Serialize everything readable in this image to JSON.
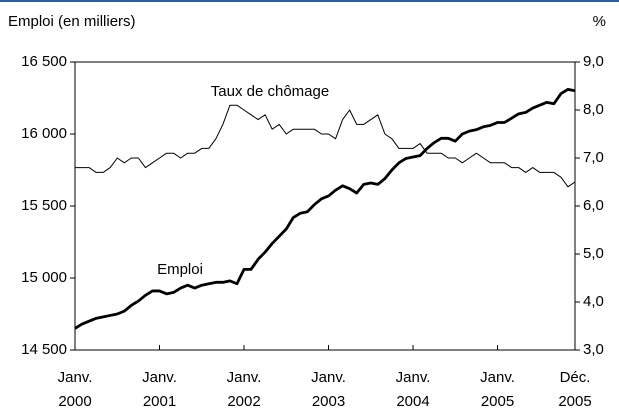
{
  "chart_data": {
    "type": "line",
    "y_label": "Emploi (en milliers)",
    "y2_label": "%",
    "annotations": [
      "Taux de chômage",
      "Emploi"
    ],
    "categories": [
      "Janv.\n2000",
      null,
      null,
      null,
      null,
      null,
      null,
      null,
      null,
      null,
      null,
      null,
      "Janv.\n2001",
      null,
      null,
      null,
      null,
      null,
      null,
      null,
      null,
      null,
      null,
      null,
      "Janv.\n2002",
      null,
      null,
      null,
      null,
      null,
      null,
      null,
      null,
      null,
      null,
      null,
      "Janv.\n2003",
      null,
      null,
      null,
      null,
      null,
      null,
      null,
      null,
      null,
      null,
      null,
      "Janv.\n2004",
      null,
      null,
      null,
      null,
      null,
      null,
      null,
      null,
      null,
      null,
      null,
      "Janv.\n2005",
      null,
      null,
      null,
      null,
      null,
      null,
      null,
      null,
      null,
      null,
      "Déc.\n2005"
    ],
    "series": [
      {
        "name": "Emploi",
        "color": "#000000",
        "axis": "y",
        "values": [
          14650,
          14680,
          14700,
          14720,
          14730,
          14740,
          14750,
          14770,
          14810,
          14840,
          14880,
          14910,
          14910,
          14890,
          14900,
          14930,
          14950,
          14930,
          14950,
          14960,
          14970,
          14970,
          14980,
          14960,
          15060,
          15060,
          15130,
          15180,
          15240,
          15290,
          15340,
          15420,
          15450,
          15460,
          15510,
          15550,
          15570,
          15610,
          15640,
          15620,
          15590,
          15650,
          15660,
          15650,
          15690,
          15750,
          15800,
          15830,
          15840,
          15850,
          15900,
          15940,
          15970,
          15970,
          15950,
          16000,
          16020,
          16030,
          16050,
          16060,
          16080,
          16080,
          16110,
          16140,
          16150,
          16180,
          16200,
          16220,
          16210,
          16280,
          16310,
          16300
        ]
      },
      {
        "name": "Taux de chômage",
        "color": "#000000",
        "axis": "y2",
        "values": [
          6.8,
          6.8,
          6.8,
          6.7,
          6.7,
          6.8,
          7.0,
          6.9,
          7.0,
          7.0,
          6.8,
          6.9,
          7.0,
          7.1,
          7.1,
          7.0,
          7.1,
          7.1,
          7.2,
          7.2,
          7.4,
          7.7,
          8.1,
          8.1,
          8.0,
          7.9,
          7.8,
          7.9,
          7.6,
          7.7,
          7.5,
          7.6,
          7.6,
          7.6,
          7.6,
          7.5,
          7.5,
          7.4,
          7.8,
          8.0,
          7.7,
          7.7,
          7.8,
          7.9,
          7.5,
          7.4,
          7.2,
          7.2,
          7.2,
          7.3,
          7.1,
          7.1,
          7.1,
          7.0,
          7.0,
          6.9,
          7.0,
          7.1,
          7.0,
          6.9,
          6.9,
          6.9,
          6.8,
          6.8,
          6.7,
          6.8,
          6.7,
          6.7,
          6.7,
          6.6,
          6.4,
          6.5
        ]
      }
    ],
    "ylim": [
      14500,
      16500
    ],
    "yticks": [
      {
        "value": 14500,
        "label": "14 500"
      },
      {
        "value": 15000,
        "label": "15 000"
      },
      {
        "value": 15500,
        "label": "15 500"
      },
      {
        "value": 16000,
        "label": "16 000"
      },
      {
        "value": 16500,
        "label": "16 500"
      }
    ],
    "y2lim": [
      3,
      9
    ],
    "y2ticks": [
      {
        "value": 3,
        "label": "3,0"
      },
      {
        "value": 4,
        "label": "4,0"
      },
      {
        "value": 5,
        "label": "5,0"
      },
      {
        "value": 6,
        "label": "6,0"
      },
      {
        "value": 7,
        "label": "7,0"
      },
      {
        "value": 8,
        "label": "8,0"
      },
      {
        "value": 9,
        "label": "9,0"
      }
    ],
    "grid": false
  }
}
